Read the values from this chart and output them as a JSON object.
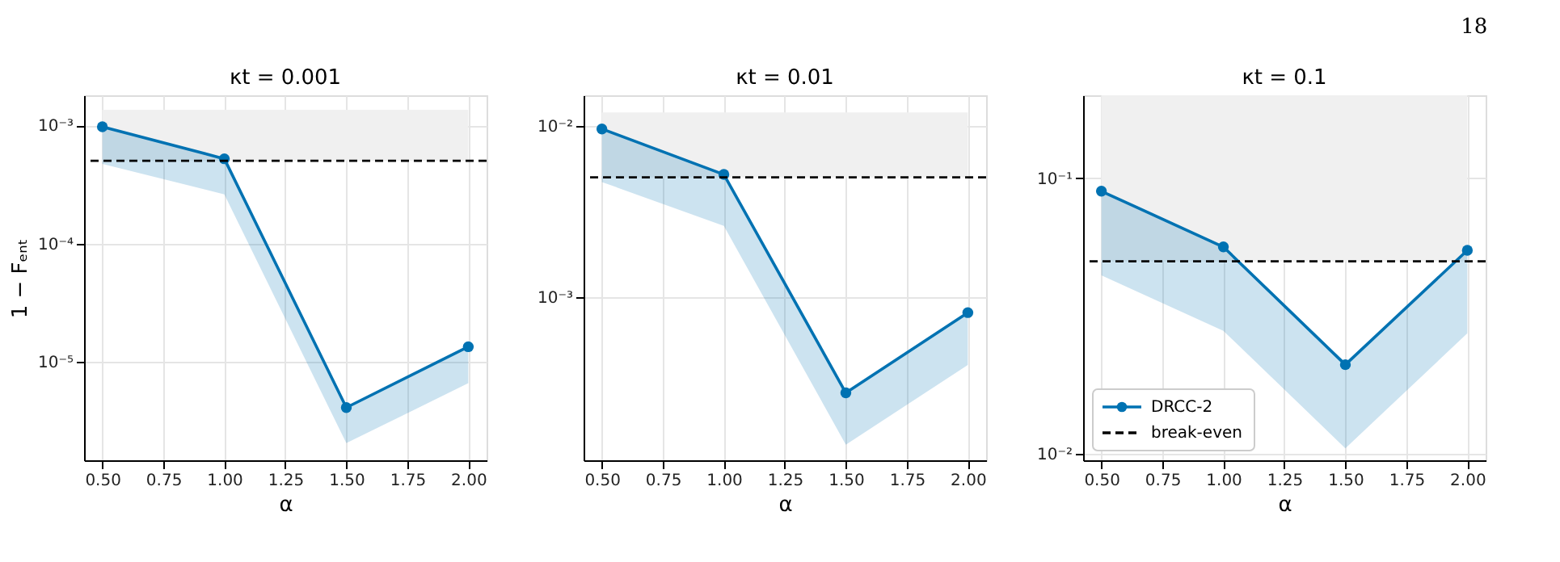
{
  "chart_data": [
    {
      "type": "line",
      "title": "κt = 0.001",
      "xlabel": "α",
      "ylabel": "1 − Fₑₙₜ",
      "x": [
        0.5,
        1.0,
        1.5,
        2.0
      ],
      "series": [
        {
          "color": "#0072b2",
          "values": [
            0.00097,
            0.00052,
            4.1e-06,
            1.34e-05
          ],
          "lower": [
            0.00047,
            0.00026,
            2.05e-06,
            6.6e-06
          ],
          "upper": [
            0.00097,
            0.00052,
            4.1e-06,
            1.34e-05
          ]
        }
      ],
      "log": "y",
      "xlim": [
        0.425,
        2.075
      ],
      "ylim": [
        1.47e-06,
        0.00179
      ],
      "xticks": [
        {
          "value": 0.5,
          "label": "0.50"
        },
        {
          "value": 0.75,
          "label": "0.75"
        },
        {
          "value": 1.0,
          "label": "1.00"
        },
        {
          "value": 1.25,
          "label": "1.25"
        },
        {
          "value": 1.5,
          "label": "1.50"
        },
        {
          "value": 1.75,
          "label": "1.75"
        },
        {
          "value": 2.0,
          "label": "2.00"
        }
      ],
      "yticks": [
        {
          "value": 0.001,
          "label": "10⁻³"
        },
        {
          "value": 0.0001,
          "label": "10⁻⁴"
        },
        {
          "value": 1e-05,
          "label": "10⁻⁵"
        }
      ],
      "ref_lines": [
        {
          "axis": "y",
          "value": 0.0005,
          "color": "#000000",
          "line_style": "dashed"
        }
      ],
      "bands": [
        {
          "axis": "y",
          "from": 0.0005,
          "to": 0.00135,
          "color": "#f0f0f0"
        }
      ],
      "grid": true,
      "marker": "circle",
      "line_style": "solid"
    },
    {
      "type": "line",
      "title": "κt = 0.01",
      "xlabel": "α",
      "x": [
        0.5,
        1.0,
        1.5,
        2.0
      ],
      "series": [
        {
          "color": "#0072b2",
          "values": [
            0.0096,
            0.0052,
            0.000275,
            0.00081
          ],
          "lower": [
            0.0047,
            0.0026,
            0.000137,
            0.0004
          ],
          "upper": [
            0.0096,
            0.0052,
            0.000275,
            0.00081
          ]
        }
      ],
      "log": "y",
      "xlim": [
        0.425,
        2.075
      ],
      "ylim": [
        0.000111,
        0.0151
      ],
      "xticks": [
        {
          "value": 0.5,
          "label": "0.50"
        },
        {
          "value": 0.75,
          "label": "0.75"
        },
        {
          "value": 1.0,
          "label": "1.00"
        },
        {
          "value": 1.25,
          "label": "1.25"
        },
        {
          "value": 1.5,
          "label": "1.50"
        },
        {
          "value": 1.75,
          "label": "1.75"
        },
        {
          "value": 2.0,
          "label": "2.00"
        }
      ],
      "yticks": [
        {
          "value": 0.01,
          "label": "10⁻²"
        },
        {
          "value": 0.001,
          "label": "10⁻³"
        }
      ],
      "ref_lines": [
        {
          "axis": "y",
          "value": 0.005,
          "color": "#000000",
          "line_style": "dashed"
        }
      ],
      "bands": [
        {
          "axis": "y",
          "from": 0.005,
          "to": 0.012,
          "color": "#f0f0f0"
        }
      ],
      "grid": true,
      "marker": "circle",
      "line_style": "solid"
    },
    {
      "type": "line",
      "title": "κt = 0.1",
      "xlabel": "α",
      "x": [
        0.5,
        1.0,
        1.5,
        2.0
      ],
      "series": [
        {
          "name": "DRCC-2",
          "color": "#0072b2",
          "values": [
            0.0898,
            0.0564,
            0.0211,
            0.0548
          ],
          "lower": [
            0.0445,
            0.028,
            0.0105,
            0.0274
          ],
          "upper": [
            0.0898,
            0.0564,
            0.0211,
            0.0548
          ]
        }
      ],
      "log": "y",
      "xlim": [
        0.425,
        2.075
      ],
      "ylim": [
        0.0095,
        0.2
      ],
      "xticks": [
        {
          "value": 0.5,
          "label": "0.50"
        },
        {
          "value": 0.75,
          "label": "0.75"
        },
        {
          "value": 1.0,
          "label": "1.00"
        },
        {
          "value": 1.25,
          "label": "1.25"
        },
        {
          "value": 1.5,
          "label": "1.50"
        },
        {
          "value": 1.75,
          "label": "1.75"
        },
        {
          "value": 2.0,
          "label": "2.00"
        }
      ],
      "yticks": [
        {
          "value": 0.1,
          "label": "10⁻¹"
        },
        {
          "value": 0.01,
          "label": "10⁻²"
        }
      ],
      "ref_lines": [
        {
          "axis": "y",
          "value": 0.05,
          "label": "break-even",
          "color": "#000000",
          "line_style": "dashed"
        }
      ],
      "bands": [
        {
          "axis": "y",
          "from": 0.05,
          "to": 0.2,
          "color": "#f0f0f0"
        }
      ],
      "annotations": [
        "18"
      ],
      "grid": true,
      "legend": "bottom left",
      "marker": "circle",
      "line_style": "solid"
    }
  ]
}
